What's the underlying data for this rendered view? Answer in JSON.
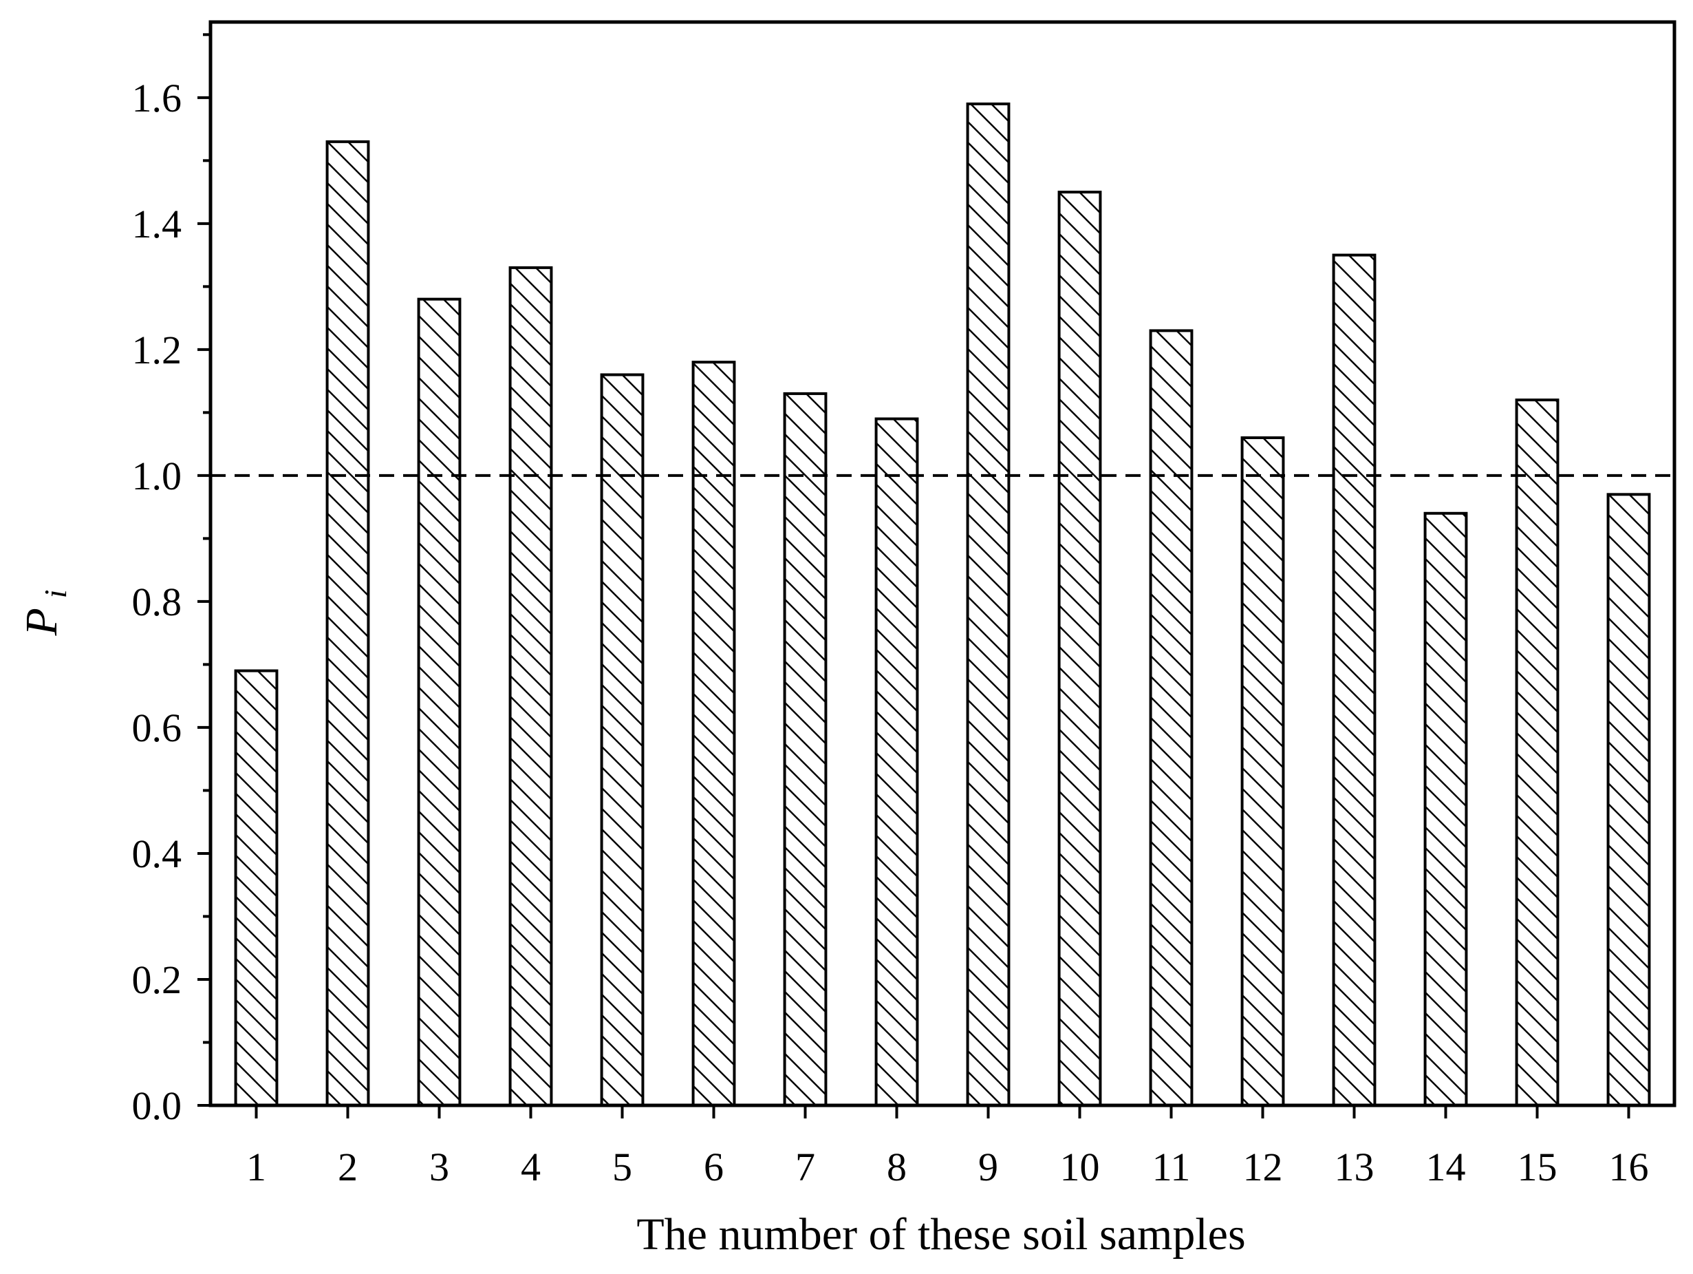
{
  "chart_data": {
    "type": "bar",
    "x_label": "The number of these soil samples",
    "y_label": "P",
    "y_label_subscript": "i",
    "categories": [
      "1",
      "2",
      "3",
      "4",
      "5",
      "6",
      "7",
      "8",
      "9",
      "10",
      "11",
      "12",
      "13",
      "14",
      "15",
      "16"
    ],
    "values": [
      0.69,
      1.53,
      1.28,
      1.33,
      1.16,
      1.18,
      1.13,
      1.09,
      1.59,
      1.45,
      1.23,
      1.06,
      1.35,
      0.94,
      1.12,
      0.97
    ],
    "color": "#000000",
    "hatch": "diagonal",
    "ylim": [
      0,
      1.72
    ],
    "yticks": [
      {
        "value": 0,
        "label": "0.0"
      },
      0.2,
      0.4,
      0.6,
      0.8,
      {
        "value": 1,
        "label": "1.0"
      },
      1.2,
      1.4,
      1.6
    ],
    "minor_yticks": [
      0.1,
      0.3,
      0.5,
      0.7,
      0.9,
      1.1,
      1.3,
      1.5,
      1.7
    ],
    "reference_line": 1.0,
    "grid": false
  }
}
